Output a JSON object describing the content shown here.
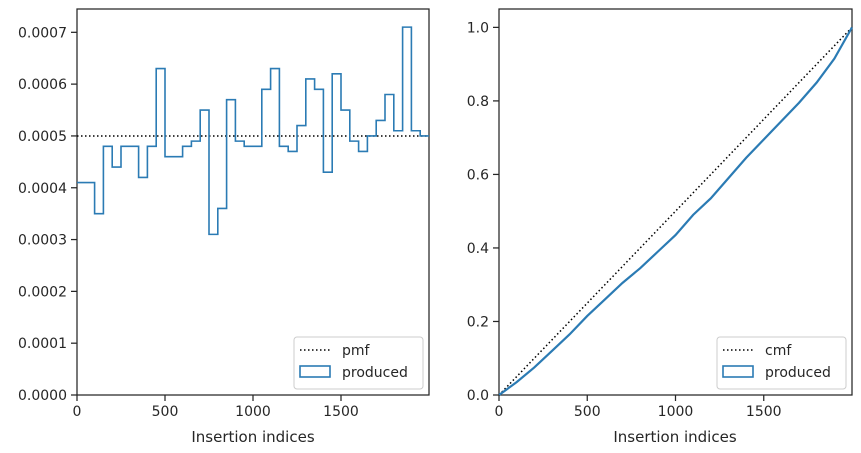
{
  "chart_data": [
    {
      "type": "step",
      "xlabel": "Insertion indices",
      "ylabel": "",
      "title": "",
      "xlim": [
        0,
        2000
      ],
      "ylim": [
        0,
        0.000745
      ],
      "xticks": [
        0,
        500,
        1000,
        1500
      ],
      "xtick_labels": [
        "0",
        "500",
        "1000",
        "1500"
      ],
      "yticks": [
        0,
        0.0001,
        0.0002,
        0.0003,
        0.0004,
        0.0005,
        0.0006,
        0.0007
      ],
      "ytick_labels": [
        "0.0000",
        "0.0001",
        "0.0002",
        "0.0003",
        "0.0004",
        "0.0005",
        "0.0006",
        "0.0007"
      ],
      "grid": false,
      "legend_position": "bottom-right",
      "series": [
        {
          "name": "pmf",
          "kind": "reference-line",
          "style": "dotted",
          "color": "#000000",
          "y": 0.0005
        },
        {
          "name": "produced",
          "kind": "histogram-step",
          "color": "#2b7bb4",
          "bin_width": 50,
          "bin_edges_start": 0,
          "values": [
            0.00041,
            0.00041,
            0.00035,
            0.00048,
            0.00044,
            0.00048,
            0.00048,
            0.00042,
            0.00048,
            0.00063,
            0.00046,
            0.00046,
            0.00048,
            0.00049,
            0.00055,
            0.00031,
            0.00036,
            0.00057,
            0.00049,
            0.00048,
            0.00048,
            0.00059,
            0.00063,
            0.00048,
            0.00047,
            0.00052,
            0.00061,
            0.00059,
            0.00043,
            0.00062,
            0.00055,
            0.00049,
            0.00047,
            0.0005,
            0.00053,
            0.00058,
            0.00051,
            0.00071,
            0.00051,
            0.0005
          ]
        }
      ]
    },
    {
      "type": "line",
      "xlabel": "Insertion indices",
      "ylabel": "",
      "title": "",
      "xlim": [
        0,
        2000
      ],
      "ylim": [
        0,
        1.05
      ],
      "xticks": [
        0,
        500,
        1000,
        1500
      ],
      "xtick_labels": [
        "0",
        "500",
        "1000",
        "1500"
      ],
      "yticks": [
        0,
        0.2,
        0.4,
        0.6,
        0.8,
        1.0
      ],
      "ytick_labels": [
        "0.0",
        "0.2",
        "0.4",
        "0.6",
        "0.8",
        "1.0"
      ],
      "grid": false,
      "legend_position": "bottom-right",
      "series": [
        {
          "name": "cmf",
          "style": "dotted",
          "color": "#000000",
          "x": [
            0,
            2000
          ],
          "y": [
            0,
            1.0
          ]
        },
        {
          "name": "produced",
          "style": "solid",
          "color": "#2b7bb4",
          "x": [
            0,
            100,
            200,
            300,
            400,
            500,
            600,
            700,
            800,
            900,
            1000,
            1100,
            1200,
            1300,
            1400,
            1500,
            1600,
            1700,
            1800,
            1900,
            2000
          ],
          "y": [
            0,
            0.035,
            0.075,
            0.12,
            0.165,
            0.215,
            0.26,
            0.305,
            0.345,
            0.39,
            0.435,
            0.49,
            0.535,
            0.59,
            0.645,
            0.695,
            0.745,
            0.795,
            0.85,
            0.915,
            1.0
          ]
        }
      ]
    }
  ]
}
